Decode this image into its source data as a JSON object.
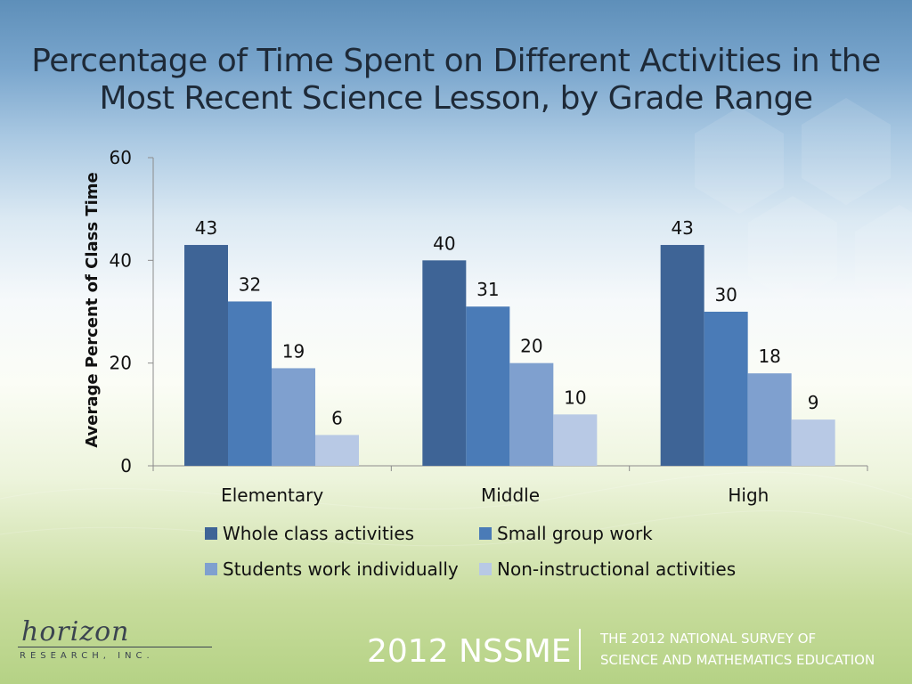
{
  "colors": {
    "whole_class": "#3e6496",
    "small_group": "#4a7bb7",
    "individually": "#7fa0cf",
    "non_instructional": "#b8c9e5",
    "axis": "#8c8c8c",
    "text": "#111111"
  },
  "chart_data": {
    "type": "bar",
    "title": "Percentage of Time Spent on Different Activities in the Most Recent Science Lesson, by Grade Range",
    "ylabel": "Average Percent of Class Time",
    "xlabel": "",
    "ylim": [
      0,
      60
    ],
    "yticks": [
      0,
      20,
      40,
      60
    ],
    "grid": false,
    "legend_position": "bottom",
    "categories": [
      "Elementary",
      "Middle",
      "High"
    ],
    "series": [
      {
        "name": "Whole class activities",
        "values": [
          43,
          40,
          43
        ]
      },
      {
        "name": "Small group work",
        "values": [
          32,
          31,
          30
        ]
      },
      {
        "name": "Students work individually",
        "values": [
          19,
          20,
          18
        ]
      },
      {
        "name": "Non-instructional activities",
        "values": [
          6,
          10,
          9
        ]
      }
    ]
  },
  "footer": {
    "logo_name": "horizon",
    "logo_sub": "RESEARCH, INC.",
    "survey_short": "2012 NSSME",
    "survey_line1": "THE 2012 NATIONAL SURVEY OF",
    "survey_line2": "SCIENCE AND MATHEMATICS EDUCATION"
  }
}
